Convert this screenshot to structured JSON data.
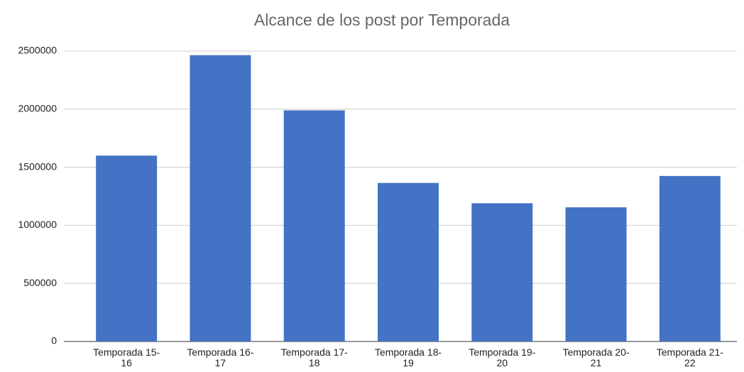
{
  "chart_data": {
    "type": "bar",
    "title": "Alcance de los post por Temporada",
    "categories": [
      "Temporada 15-16",
      "Temporada 16-17",
      "Temporada 17-18",
      "Temporada 18-19",
      "Temporada 19-20",
      "Temporada 20-21",
      "Temporada 21-22"
    ],
    "values": [
      1600000,
      2465000,
      1990000,
      1365000,
      1190000,
      1155000,
      1425000
    ],
    "color": "#4472c4",
    "ylim": [
      0,
      2500000
    ],
    "yticks": [
      0,
      500000,
      1000000,
      1500000,
      2000000,
      2500000
    ],
    "grid": true
  }
}
